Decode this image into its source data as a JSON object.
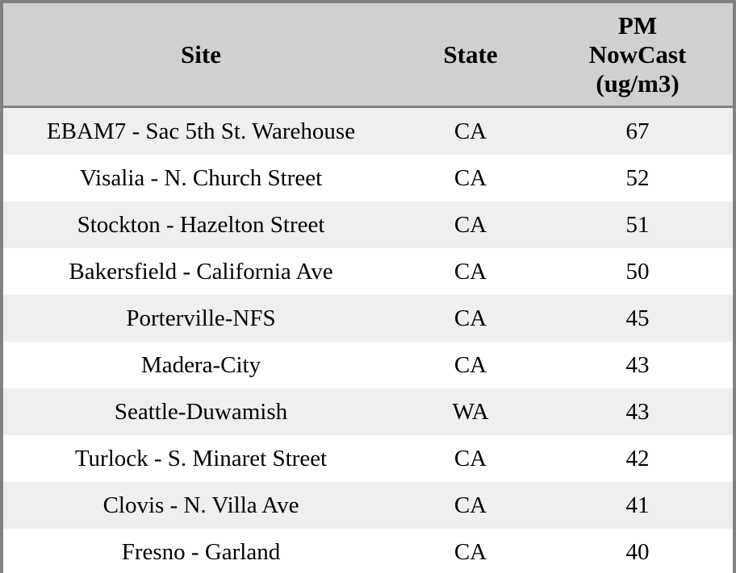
{
  "chart_data": {
    "type": "table",
    "columns": [
      "Site",
      "State",
      "PM NowCast (ug/m3)"
    ],
    "rows": [
      [
        "EBAM7 - Sac 5th St. Warehouse",
        "CA",
        67
      ],
      [
        "Visalia - N. Church Street",
        "CA",
        52
      ],
      [
        "Stockton - Hazelton Street",
        "CA",
        51
      ],
      [
        "Bakersfield - California Ave",
        "CA",
        50
      ],
      [
        "Porterville-NFS",
        "CA",
        45
      ],
      [
        "Madera-City",
        "CA",
        43
      ],
      [
        "Seattle-Duwamish",
        "WA",
        43
      ],
      [
        "Turlock - S. Minaret Street",
        "CA",
        42
      ],
      [
        "Clovis - N. Villa Ave",
        "CA",
        41
      ],
      [
        "Fresno - Garland",
        "CA",
        40
      ]
    ]
  },
  "table": {
    "columns": [
      {
        "id": "site",
        "label": "Site"
      },
      {
        "id": "state",
        "label": "State"
      },
      {
        "id": "pm_nowcast",
        "label": "PM\nNowCast\n(ug/m3)"
      }
    ],
    "rows": [
      {
        "site": "EBAM7 - Sac 5th St. Warehouse",
        "state": "CA",
        "pm_nowcast": "67"
      },
      {
        "site": "Visalia - N. Church Street",
        "state": "CA",
        "pm_nowcast": "52"
      },
      {
        "site": "Stockton - Hazelton Street",
        "state": "CA",
        "pm_nowcast": "51"
      },
      {
        "site": "Bakersfield - California Ave",
        "state": "CA",
        "pm_nowcast": "50"
      },
      {
        "site": "Porterville-NFS",
        "state": "CA",
        "pm_nowcast": "45"
      },
      {
        "site": "Madera-City",
        "state": "CA",
        "pm_nowcast": "43"
      },
      {
        "site": "Seattle-Duwamish",
        "state": "WA",
        "pm_nowcast": "43"
      },
      {
        "site": "Turlock - S. Minaret Street",
        "state": "CA",
        "pm_nowcast": "42"
      },
      {
        "site": "Clovis - N. Villa Ave",
        "state": "CA",
        "pm_nowcast": "41"
      },
      {
        "site": "Fresno - Garland",
        "state": "CA",
        "pm_nowcast": "40"
      }
    ]
  },
  "colors": {
    "frame_border": "#818181",
    "header_bg": "#d0d0d0",
    "header_divider": "#818181",
    "row_odd_bg": "#efefef",
    "row_even_bg": "#ffffff",
    "text": "#000000"
  }
}
